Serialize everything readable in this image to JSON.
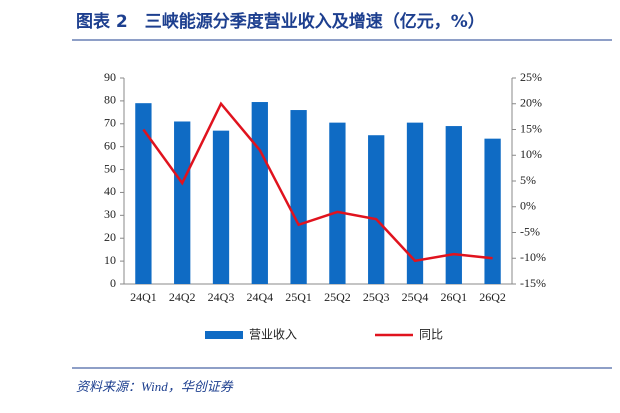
{
  "chart_data": {
    "type": "bar",
    "title": "图表 2　三峡能源分季度营业收入及增速（亿元，%）",
    "source": "资料来源：Wind，华创证券",
    "categories": [
      "24Q1",
      "24Q2",
      "24Q3",
      "24Q4",
      "25Q1",
      "25Q2",
      "25Q3",
      "25Q4",
      "26Q1",
      "26Q2"
    ],
    "series": [
      {
        "name": "营业收入",
        "type": "bar",
        "color": "#0f6bc4",
        "values": [
          79,
          71,
          67,
          79.5,
          76,
          70.5,
          65,
          70.5,
          69,
          63.5
        ]
      },
      {
        "name": "同比",
        "type": "line",
        "axis": "y2",
        "color": "#e0131e",
        "values": [
          15,
          4.6,
          20,
          11,
          -3.5,
          -1,
          -2.4,
          -10.5,
          -9.2,
          -10
        ]
      }
    ],
    "ylim": [
      0,
      90
    ],
    "yticks": [
      0,
      10,
      20,
      30,
      40,
      50,
      60,
      70,
      80,
      90
    ],
    "y2lim": [
      -15,
      25
    ],
    "y2ticks": [
      {
        "value": -15,
        "label": "-15%"
      },
      {
        "value": -10,
        "label": "-10%"
      },
      {
        "value": -5,
        "label": "-5%"
      },
      {
        "value": 0,
        "label": "0%"
      },
      {
        "value": 5,
        "label": "5%"
      },
      {
        "value": 10,
        "label": "10%"
      },
      {
        "value": 15,
        "label": "15%"
      },
      {
        "value": 20,
        "label": "20%"
      },
      {
        "value": 25,
        "label": "25%"
      }
    ]
  }
}
